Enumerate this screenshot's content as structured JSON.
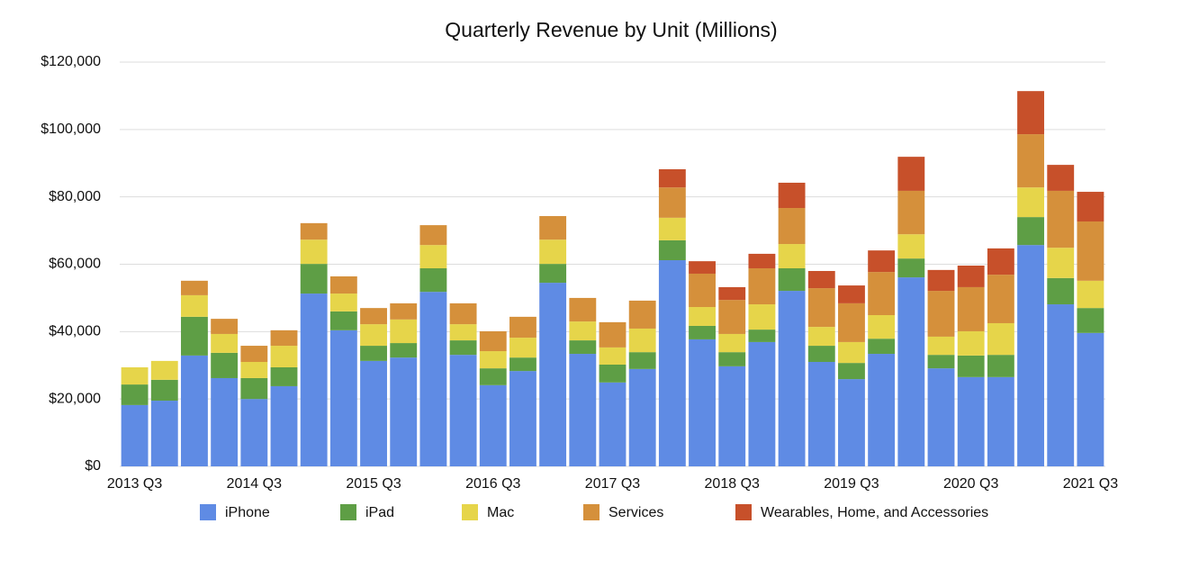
{
  "chart_data": {
    "type": "stacked_bar",
    "title": "Quarterly Revenue by Unit (Millions)",
    "categories": [
      "2013 Q3",
      null,
      null,
      null,
      "2014 Q3",
      null,
      null,
      null,
      "2015 Q3",
      null,
      null,
      null,
      "2016 Q3",
      null,
      null,
      null,
      "2017 Q3",
      null,
      null,
      null,
      "2018 Q3",
      null,
      null,
      null,
      "2019 Q3",
      null,
      null,
      null,
      "2020 Q3",
      null,
      null,
      null,
      "2021 Q3"
    ],
    "series": [
      {
        "name": "iPhone",
        "color": "#5f8be4",
        "values": [
          18200,
          19500,
          32900,
          26200,
          20000,
          23800,
          51300,
          40400,
          31300,
          32300,
          51800,
          33100,
          24100,
          28300,
          54500,
          33400,
          24900,
          28900,
          61200,
          37700,
          29700,
          36900,
          52100,
          31000,
          25900,
          33400,
          56100,
          29100,
          26500,
          26500,
          65700,
          48100,
          39600
        ]
      },
      {
        "name": "iPad",
        "color": "#5e9e45",
        "values": [
          6100,
          6200,
          11500,
          7500,
          6200,
          5600,
          8800,
          5600,
          4500,
          4300,
          7000,
          4300,
          5000,
          4000,
          5600,
          4000,
          5300,
          5000,
          5900,
          4000,
          4200,
          3700,
          6700,
          4800,
          4800,
          4500,
          5600,
          4000,
          6400,
          6600,
          8300,
          7800,
          7400
        ]
      },
      {
        "name": "Mac",
        "color": "#e6d54a",
        "values": [
          5100,
          5600,
          6400,
          5600,
          4800,
          6400,
          7200,
          5300,
          6400,
          7000,
          6900,
          4800,
          5100,
          5900,
          7200,
          5600,
          5100,
          7000,
          6700,
          5600,
          5400,
          7500,
          7200,
          5600,
          6200,
          7000,
          7200,
          5400,
          7200,
          9400,
          8800,
          9000,
          8100
        ]
      },
      {
        "name": "Services",
        "color": "#d5903b",
        "values": [
          null,
          null,
          4300,
          4500,
          4800,
          4600,
          4900,
          5100,
          4800,
          4800,
          5900,
          6200,
          5900,
          6200,
          7000,
          7000,
          7500,
          8300,
          9000,
          9900,
          10100,
          10700,
          10700,
          11500,
          11500,
          12800,
          12900,
          13600,
          13100,
          14400,
          15800,
          16900,
          17600
        ]
      },
      {
        "name": "Wearables, Home, and Accessories",
        "color": "#c7502a",
        "values": [
          null,
          null,
          null,
          null,
          null,
          null,
          null,
          null,
          null,
          null,
          null,
          null,
          null,
          null,
          null,
          null,
          null,
          null,
          5400,
          3700,
          3800,
          4300,
          7500,
          5100,
          5300,
          6400,
          10100,
          6200,
          6400,
          7800,
          12800,
          7700,
          8800
        ]
      }
    ],
    "ylim": [
      0,
      120000
    ],
    "yticks": [
      {
        "value": 0,
        "label": "$0"
      },
      {
        "value": 20000,
        "label": "$20,000"
      },
      {
        "value": 40000,
        "label": "$40,000"
      },
      {
        "value": 60000,
        "label": "$60,000"
      },
      {
        "value": 80000,
        "label": "$80,000"
      },
      {
        "value": 100000,
        "label": "$100,000"
      },
      {
        "value": 120000,
        "label": "$120,000"
      }
    ],
    "grid": true,
    "legend": "bottom"
  }
}
